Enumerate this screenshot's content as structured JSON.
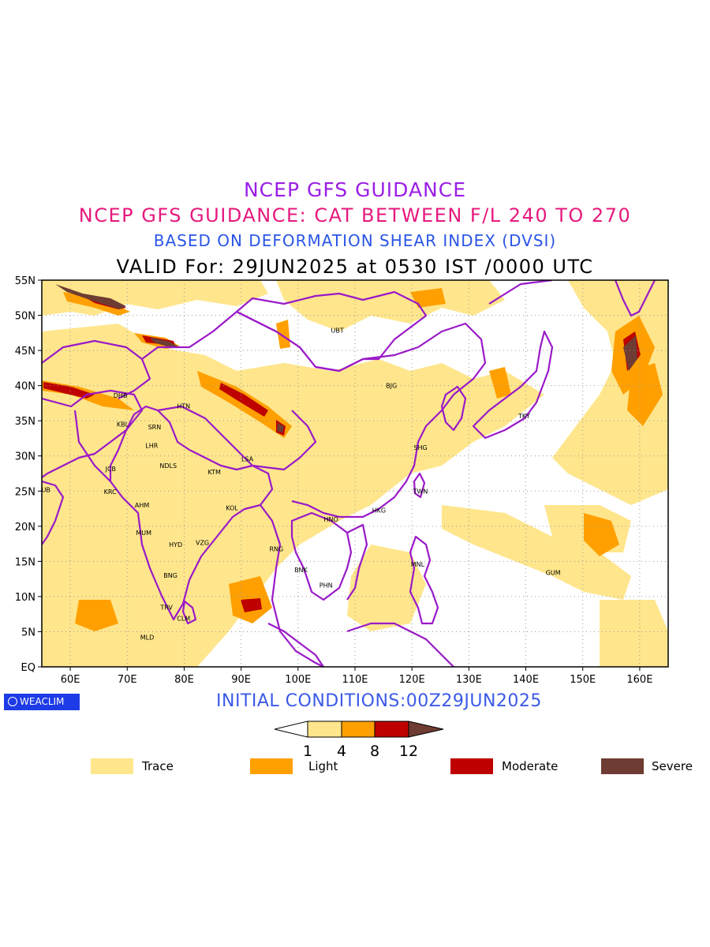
{
  "titles": {
    "line1": "NCEP GFS GUIDANCE",
    "line2": "NCEP GFS GUIDANCE: CAT BETWEEN F/L 240 TO 270",
    "line3": "BASED ON DEFORMATION SHEAR INDEX (DVSI)",
    "line4": "VALID For: 29JUN2025 at 0530 IST /0000 UTC"
  },
  "initial_conditions": "INITIAL CONDITIONS:00Z29JUN2025",
  "logo": "WEACLIM",
  "map": {
    "lon_labels": [
      "60E",
      "70E",
      "80E",
      "90E",
      "100E",
      "110E",
      "120E",
      "130E",
      "140E",
      "150E",
      "160E"
    ],
    "lat_labels": [
      "55N",
      "50N",
      "45N",
      "40N",
      "35N",
      "30N",
      "25N",
      "20N",
      "15N",
      "10N",
      "5N",
      "EQ"
    ],
    "boundary_color": "#9a19c8",
    "grid": "dotted",
    "cities": [
      {
        "code": "UBT",
        "lon": 106.9,
        "lat": 47.9
      },
      {
        "code": "BJG",
        "lon": 116.4,
        "lat": 40.0
      },
      {
        "code": "TKY",
        "lon": 139.7,
        "lat": 35.7
      },
      {
        "code": "SHG",
        "lon": 121.5,
        "lat": 31.2
      },
      {
        "code": "TWN",
        "lon": 121.5,
        "lat": 25.0
      },
      {
        "code": "HKG",
        "lon": 114.2,
        "lat": 22.3
      },
      {
        "code": "HNO",
        "lon": 105.8,
        "lat": 21.0
      },
      {
        "code": "MNL",
        "lon": 121.0,
        "lat": 14.6
      },
      {
        "code": "GUM",
        "lon": 144.8,
        "lat": 13.4
      },
      {
        "code": "BNK",
        "lon": 100.5,
        "lat": 13.8
      },
      {
        "code": "PHN",
        "lon": 104.9,
        "lat": 11.6
      },
      {
        "code": "RNG",
        "lon": 96.2,
        "lat": 16.8
      },
      {
        "code": "KOL",
        "lon": 88.4,
        "lat": 22.6
      },
      {
        "code": "LSA",
        "lon": 91.1,
        "lat": 29.6
      },
      {
        "code": "KTM",
        "lon": 85.3,
        "lat": 27.7
      },
      {
        "code": "NDLS",
        "lon": 77.2,
        "lat": 28.6
      },
      {
        "code": "LHR",
        "lon": 74.3,
        "lat": 31.5
      },
      {
        "code": "SRN",
        "lon": 74.8,
        "lat": 34.1
      },
      {
        "code": "HTN",
        "lon": 79.9,
        "lat": 37.1
      },
      {
        "code": "DHB",
        "lon": 68.8,
        "lat": 38.6
      },
      {
        "code": "KBL",
        "lon": 69.2,
        "lat": 34.5
      },
      {
        "code": "JCB",
        "lon": 67.1,
        "lat": 28.2
      },
      {
        "code": "KRC",
        "lon": 67.0,
        "lat": 24.9
      },
      {
        "code": "AHM",
        "lon": 72.6,
        "lat": 23.0
      },
      {
        "code": "MUM",
        "lon": 72.9,
        "lat": 19.1
      },
      {
        "code": "HYD",
        "lon": 78.5,
        "lat": 17.4
      },
      {
        "code": "VZG",
        "lon": 83.2,
        "lat": 17.7
      },
      {
        "code": "BNG",
        "lon": 77.6,
        "lat": 13.0
      },
      {
        "code": "TRV",
        "lon": 76.9,
        "lat": 8.5
      },
      {
        "code": "CLM",
        "lon": 79.9,
        "lat": 6.9
      },
      {
        "code": "MLD",
        "lon": 73.5,
        "lat": 4.2
      },
      {
        "code": "DUB",
        "lon": 55.3,
        "lat": 25.2
      }
    ]
  },
  "colorbar": {
    "ticks": [
      "1",
      "4",
      "8",
      "12"
    ],
    "colors": [
      "#ffe68c",
      "#ffa000",
      "#be0000",
      "#6e3c32"
    ]
  },
  "legend": [
    {
      "label": "Trace",
      "color": "#ffe68c"
    },
    {
      "label": "Light",
      "color": "#ffa000"
    },
    {
      "label": "Moderate",
      "color": "#be0000"
    },
    {
      "label": "Severe",
      "color": "#6e3c32"
    }
  ]
}
